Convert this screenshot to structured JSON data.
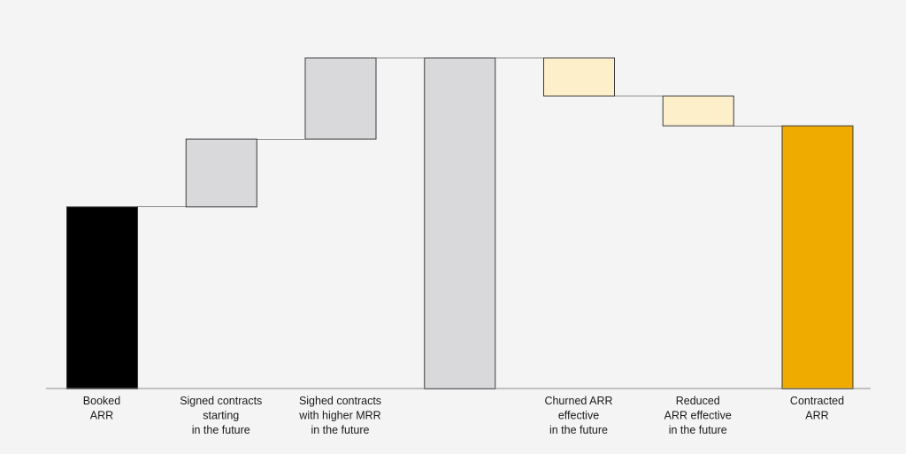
{
  "chart_data": {
    "type": "bar",
    "subtype": "waterfall",
    "title": "",
    "xlabel": "",
    "ylabel": "",
    "ylim": [
      0,
      100
    ],
    "grid": false,
    "legend": "none",
    "categories": [
      [
        "Booked",
        "ARR"
      ],
      [
        "Signed contracts",
        "starting",
        "in the future"
      ],
      [
        "Sighed contracts",
        "with higher MRR",
        "in the future"
      ],
      [],
      [
        "Churned ARR",
        "effective",
        "in the future"
      ],
      [
        "Reduced",
        "ARR effective",
        "in the future"
      ],
      [
        "Contracted",
        "ARR"
      ]
    ],
    "bars": [
      {
        "kind": "total",
        "start": 0,
        "end": 55,
        "color": "#000000"
      },
      {
        "kind": "delta",
        "start": 55,
        "end": 75.5,
        "color": "#d9d9db"
      },
      {
        "kind": "delta",
        "start": 75.5,
        "end": 100,
        "color": "#d9d9db"
      },
      {
        "kind": "total",
        "start": 0,
        "end": 100,
        "color": "#d9d9db"
      },
      {
        "kind": "delta",
        "start": 100,
        "end": 88.5,
        "color": "#fdefc9"
      },
      {
        "kind": "delta",
        "start": 88.5,
        "end": 79.5,
        "color": "#fdefc9"
      },
      {
        "kind": "total",
        "start": 0,
        "end": 79.5,
        "color": "#efab00"
      }
    ],
    "connector_color": "#8c8c8c",
    "baseline_color": "#8c8c8c",
    "bar_outline_color": "#3a3a3a"
  }
}
